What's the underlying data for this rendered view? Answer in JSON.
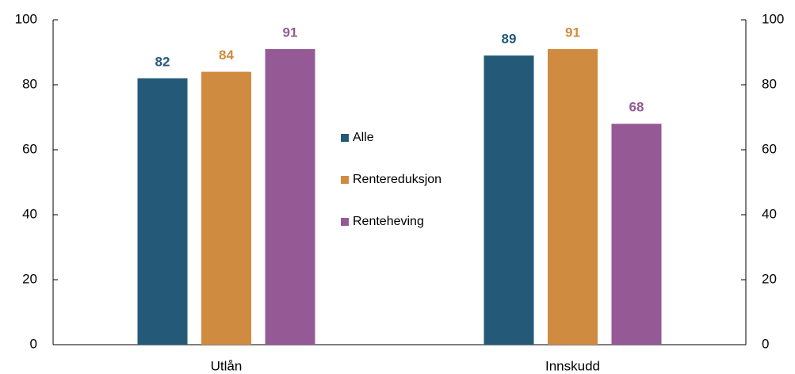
{
  "chart_data": {
    "type": "bar",
    "categories": [
      "Utlån",
      "Innskudd"
    ],
    "series": [
      {
        "name": "Alle",
        "color": "#245a78",
        "values": [
          82,
          89
        ]
      },
      {
        "name": "Rentereduksjon",
        "color": "#cf8b3f",
        "values": [
          84,
          91
        ]
      },
      {
        "name": "Renteheving",
        "color": "#955a96",
        "values": [
          91,
          68
        ]
      }
    ],
    "ylim": [
      0,
      100
    ],
    "yticks": [
      0,
      20,
      40,
      60,
      80,
      100
    ],
    "y2lim": [
      0,
      100
    ],
    "y2ticks": [
      0,
      20,
      40,
      60,
      80,
      100
    ],
    "grid": false,
    "legend": "center",
    "data_labels": true
  }
}
